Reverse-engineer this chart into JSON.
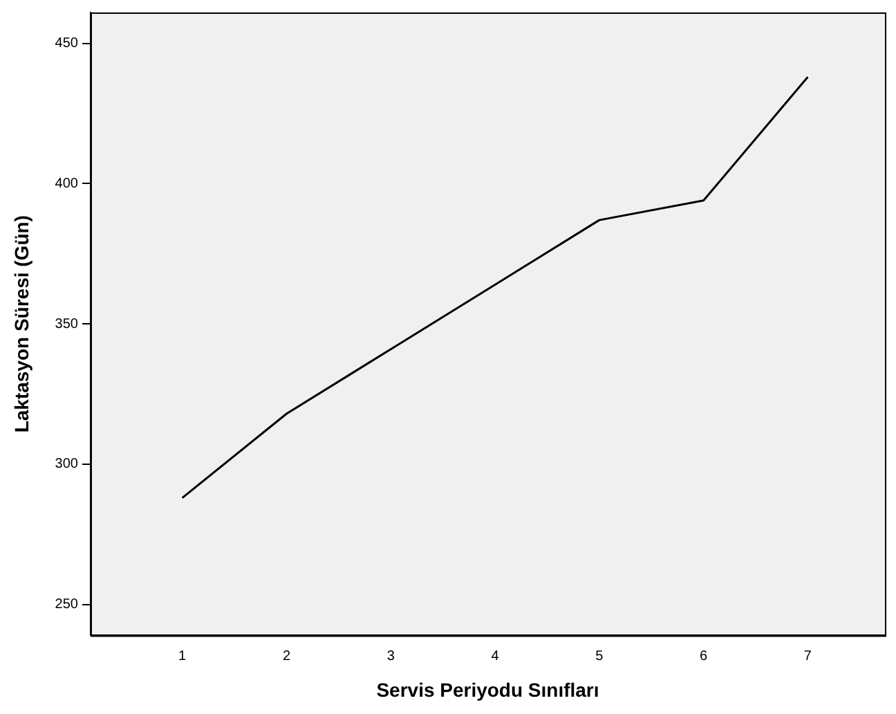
{
  "chart_data": {
    "type": "line",
    "xlabel": "Servis Periyodu Sınıfları",
    "ylabel": "Laktasyon Süresi (Gün)",
    "x": [
      1,
      2,
      3,
      4,
      5,
      6,
      7
    ],
    "series": [
      {
        "color": "#000000",
        "values": [
          288,
          318,
          341,
          364,
          387,
          394,
          438
        ]
      }
    ],
    "xlim": [
      0.12,
      7.74
    ],
    "xticks": [
      1,
      2,
      3,
      4,
      5,
      6,
      7
    ],
    "ylim": [
      239,
      461
    ],
    "yticks": [
      250,
      300,
      350,
      400,
      450
    ],
    "grid": false,
    "legend": false,
    "marker": "none",
    "line_style": "solid"
  }
}
